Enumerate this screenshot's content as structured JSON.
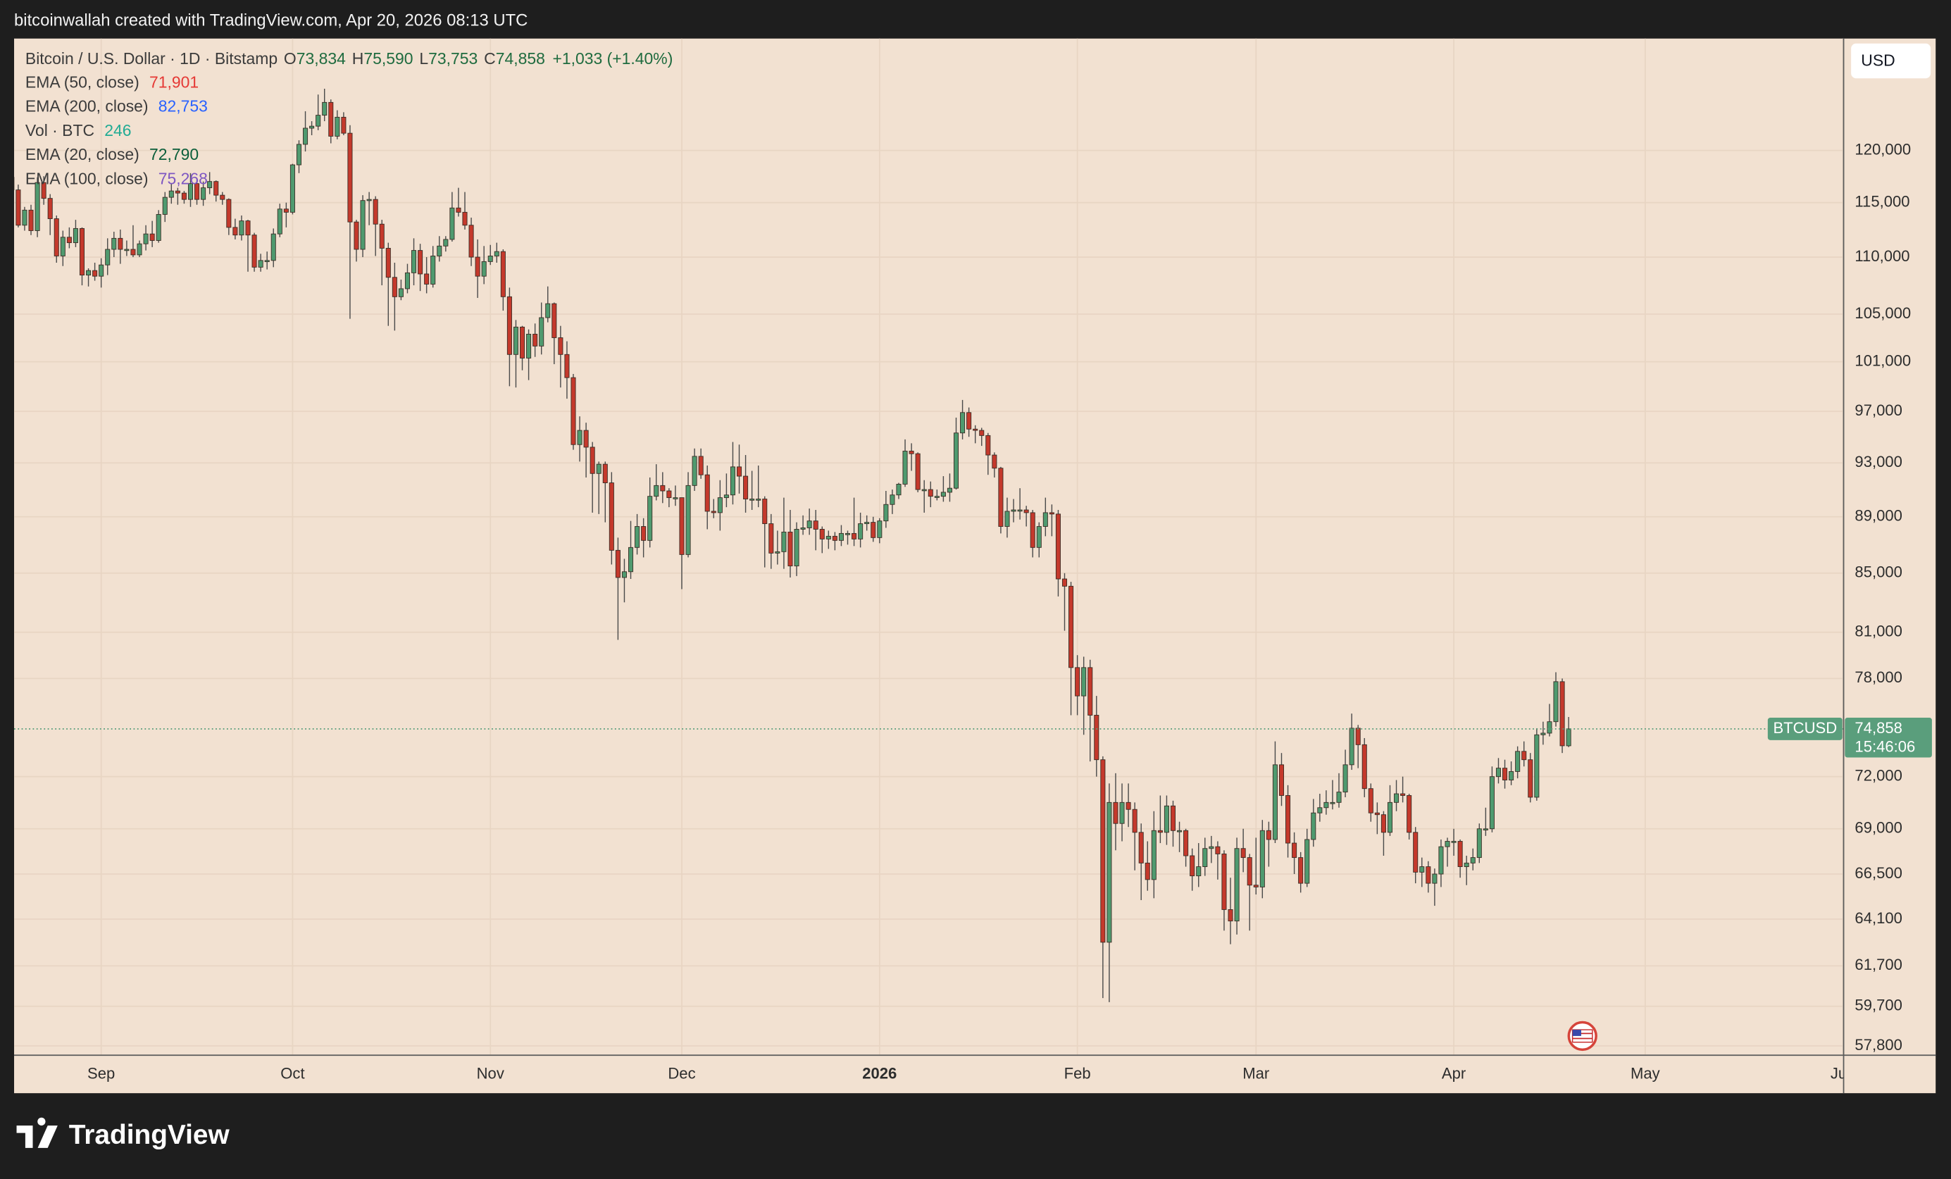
{
  "header": {
    "text": "bitcoinwallah created with TradingView.com, Apr 20, 2026 08:13 UTC"
  },
  "chart_data": {
    "type": "candlestick",
    "symbol": "Bitcoin / U.S. Dollar · 1D · Bitstamp",
    "legend_ohlc": [
      {
        "key": "O",
        "value": "73,834"
      },
      {
        "key": "H",
        "value": "75,590"
      },
      {
        "key": "L",
        "value": "73,753"
      },
      {
        "key": "C",
        "value": "74,858"
      }
    ],
    "change": "+1,033 (+1.40%)",
    "legend_color": "#1f6b3f",
    "indicators": [
      {
        "name": "EMA (50, close)",
        "value": "71,901",
        "color": "#e53935"
      },
      {
        "name": "EMA (200, close)",
        "value": "82,753",
        "color": "#2962ff"
      },
      {
        "name": "Vol · BTC",
        "value": "246",
        "color": "#22ab94"
      },
      {
        "name": "EMA (20, close)",
        "value": "72,790",
        "color": "#0b5e3a"
      },
      {
        "name": "EMA (100, close)",
        "value": "75,268",
        "color": "#7e57c2"
      }
    ],
    "up_color": "#4f9a6f",
    "down_color": "#c4392c",
    "open": [
      117400,
      116200,
      112900,
      114300,
      112400,
      116900,
      115400,
      113500,
      110100,
      111800,
      111300,
      112600,
      108400,
      108800,
      108300,
      109300,
      110700,
      111700,
      110700,
      110700,
      110200,
      111200,
      112100,
      111500,
      113900,
      115500,
      116100,
      115900,
      115300,
      116800,
      115300,
      116400,
      117000,
      115700,
      115300,
      112700,
      112000,
      113300,
      112000,
      109100,
      109700,
      109700,
      112100,
      114400,
      114100,
      118600,
      120600,
      122200,
      122400,
      123500,
      124800,
      121400,
      123300,
      121700,
      113200,
      110700,
      115200,
      115300,
      113000,
      110800,
      108200,
      106500,
      107200,
      108600,
      110600,
      108500,
      107600,
      110100,
      111000,
      111600,
      114500,
      114100,
      112900,
      110000,
      108300,
      109600,
      110100,
      110500,
      106500,
      101600,
      103900,
      101300,
      103300,
      102300,
      104700,
      105900,
      103000,
      101600,
      99700,
      94400,
      95500,
      94200,
      92200,
      92900,
      91500,
      86600,
      84700,
      85100,
      86800,
      88300,
      87300,
      90500,
      91300,
      90900,
      90400,
      90400,
      86300,
      91300,
      93500,
      92100,
      89400,
      89300,
      90400,
      90600,
      92700,
      92000,
      90300,
      90300,
      90300,
      88500,
      86400,
      86500,
      87900,
      85500,
      88100,
      88200,
      88700,
      88100,
      87400,
      87600,
      87300,
      87800,
      87800,
      87400,
      88500,
      88600,
      87500,
      88700,
      89900,
      90600,
      91400,
      93900,
      93700,
      91000,
      91000,
      90500,
      90500,
      90800,
      91100,
      95300,
      96900,
      95600,
      95500,
      95100,
      93600,
      92600,
      88300,
      89400,
      89500,
      89500,
      89300,
      86800,
      88300,
      89300,
      89200,
      84600,
      84100,
      78700,
      76900,
      78700,
      75700,
      73000,
      62900,
      70500,
      69300,
      70500,
      70100,
      68800,
      67100,
      66200,
      68900,
      68800,
      70300,
      68900,
      68900,
      67500,
      66400,
      66900,
      67900,
      68000,
      67600,
      64600,
      64000,
      67900,
      67400,
      65900,
      65800,
      68900,
      68400,
      72700,
      70900,
      68200,
      67400,
      66000,
      68400,
      69900,
      70200,
      70500,
      70500,
      71100,
      72700,
      74900,
      73900,
      71300,
      69900,
      69800,
      68800,
      70500,
      71000,
      70900,
      68800,
      66600,
      66900,
      66000,
      66500,
      68000,
      68300,
      68300,
      66900,
      67100,
      67400,
      69000,
      69000,
      72000,
      72500,
      71800,
      72300,
      73500,
      73000,
      70800,
      74500,
      74600,
      75300,
      77800,
      73834
    ],
    "high": [
      118000,
      116700,
      114600,
      114800,
      117400,
      117500,
      115800,
      113800,
      112400,
      112700,
      113400,
      112700,
      109000,
      109500,
      109900,
      111700,
      112300,
      112500,
      111500,
      112900,
      111500,
      112900,
      113300,
      114300,
      116000,
      116800,
      116400,
      116100,
      117800,
      117200,
      117000,
      117900,
      117100,
      116000,
      115400,
      113500,
      113800,
      113400,
      112200,
      110300,
      110500,
      112600,
      114900,
      115000,
      118700,
      121000,
      123900,
      122900,
      125600,
      126200,
      125100,
      124000,
      123800,
      122500,
      113400,
      115700,
      116000,
      115600,
      113400,
      111300,
      109500,
      108000,
      109400,
      111700,
      111200,
      110000,
      111000,
      111900,
      111900,
      116000,
      116400,
      116000,
      113600,
      111600,
      111000,
      111100,
      111300,
      110700,
      107300,
      104500,
      104000,
      103700,
      104200,
      106000,
      107400,
      106000,
      104000,
      102700,
      100000,
      96600,
      96100,
      94600,
      93100,
      93100,
      92300,
      87500,
      86000,
      88700,
      89200,
      88900,
      91900,
      92900,
      92300,
      91100,
      91300,
      90400,
      92300,
      94100,
      94100,
      92800,
      90300,
      91700,
      92200,
      94600,
      94400,
      93600,
      92400,
      92800,
      90500,
      89200,
      88000,
      90400,
      89500,
      88600,
      89100,
      89600,
      89500,
      88300,
      88000,
      87900,
      88400,
      88000,
      90400,
      89300,
      89100,
      89000,
      88900,
      90900,
      91000,
      91500,
      94800,
      94500,
      93800,
      91700,
      91600,
      91000,
      92000,
      92200,
      96500,
      97900,
      97300,
      95900,
      95700,
      95300,
      93800,
      92700,
      90400,
      90300,
      91100,
      89800,
      89500,
      88600,
      90400,
      89900,
      89500,
      85000,
      84400,
      79500,
      79400,
      79200,
      76900,
      73200,
      71600,
      72200,
      71600,
      71600,
      70500,
      69300,
      68300,
      70000,
      70900,
      70900,
      70600,
      69400,
      69000,
      67900,
      68200,
      68500,
      68600,
      68300,
      67800,
      66300,
      68500,
      69000,
      67600,
      68500,
      69500,
      69400,
      74100,
      73400,
      71500,
      68800,
      67700,
      69000,
      70700,
      71000,
      71200,
      71800,
      72200,
      73600,
      75800,
      75100,
      74300,
      71600,
      70500,
      70000,
      71500,
      71800,
      72000,
      71000,
      69100,
      67400,
      67200,
      66800,
      68400,
      68500,
      69000,
      68400,
      67500,
      67900,
      69300,
      70200,
      72600,
      73100,
      73000,
      72900,
      73800,
      74100,
      73400,
      74900,
      75300,
      76400,
      78400,
      78000,
      75590
    ],
    "low": [
      115700,
      112700,
      112400,
      112000,
      111800,
      114800,
      112000,
      109500,
      109200,
      110800,
      110900,
      107500,
      107400,
      107900,
      107300,
      108400,
      110000,
      109400,
      110100,
      110000,
      110000,
      110600,
      110900,
      111300,
      113200,
      114900,
      114800,
      114900,
      114600,
      114800,
      114700,
      115800,
      115100,
      114800,
      112000,
      111600,
      111500,
      108700,
      108700,
      108700,
      108900,
      109100,
      111800,
      112700,
      113900,
      117800,
      119900,
      121500,
      122000,
      122900,
      120700,
      121100,
      121500,
      104600,
      109600,
      110000,
      112900,
      110100,
      107500,
      104000,
      103600,
      106200,
      106800,
      107500,
      107000,
      106800,
      107300,
      109600,
      110500,
      111400,
      113700,
      112500,
      109200,
      106400,
      107600,
      109300,
      109500,
      105300,
      99000,
      98900,
      100300,
      99500,
      101400,
      101600,
      104300,
      100800,
      98900,
      98000,
      94000,
      93100,
      91900,
      89300,
      89200,
      88600,
      85600,
      80500,
      83000,
      84600,
      86300,
      86100,
      86800,
      90200,
      90000,
      89700,
      89800,
      83900,
      86100,
      90900,
      91800,
      88100,
      88900,
      88000,
      89700,
      89900,
      90700,
      89300,
      89500,
      89700,
      85400,
      85300,
      85600,
      85300,
      84700,
      84800,
      87700,
      87700,
      86600,
      86400,
      86700,
      86600,
      86900,
      87000,
      86900,
      86800,
      88000,
      87200,
      87100,
      88200,
      89200,
      90300,
      91200,
      92400,
      90800,
      89300,
      89700,
      90200,
      90100,
      90100,
      91000,
      94800,
      95000,
      94500,
      94300,
      92100,
      91900,
      87800,
      87500,
      88600,
      88800,
      88300,
      86100,
      86100,
      87600,
      87600,
      83400,
      81100,
      75700,
      75700,
      74500,
      72900,
      72000,
      60100,
      59900,
      67800,
      68300,
      69100,
      66700,
      65100,
      65600,
      65200,
      68200,
      68100,
      68000,
      67700,
      66900,
      65600,
      65800,
      66400,
      67100,
      66200,
      63500,
      62800,
      63300,
      66600,
      63500,
      65400,
      65200,
      66900,
      68200,
      70300,
      67400,
      66500,
      65500,
      65800,
      68000,
      69400,
      69800,
      70100,
      70200,
      70800,
      72400,
      72500,
      70800,
      69400,
      68700,
      67500,
      68600,
      70000,
      70500,
      68400,
      66000,
      65800,
      65500,
      64800,
      65800,
      66900,
      67500,
      66300,
      65900,
      66700,
      67100,
      68600,
      68800,
      71600,
      71300,
      71500,
      71900,
      72600,
      70500,
      70600,
      73900,
      74400,
      75000,
      73400,
      73753
    ],
    "close": [
      116200,
      112900,
      114300,
      112400,
      116900,
      115400,
      113500,
      110100,
      111800,
      111300,
      112600,
      108400,
      108800,
      108300,
      109300,
      110700,
      111700,
      110700,
      110700,
      110200,
      111200,
      112100,
      111500,
      113900,
      115500,
      116100,
      115900,
      115300,
      116800,
      115300,
      116400,
      117000,
      115700,
      115300,
      112700,
      112000,
      113300,
      112000,
      109100,
      109700,
      109700,
      112100,
      114400,
      114100,
      118600,
      120600,
      122200,
      122400,
      123500,
      124800,
      121400,
      123300,
      121700,
      113200,
      110700,
      115200,
      115300,
      113000,
      110800,
      108200,
      106500,
      107200,
      108600,
      110600,
      108500,
      107600,
      110100,
      111000,
      111600,
      114500,
      114100,
      112900,
      110000,
      108300,
      109600,
      110100,
      110500,
      106500,
      101600,
      103900,
      101300,
      103300,
      102300,
      104700,
      105900,
      103000,
      101600,
      99700,
      94400,
      95500,
      94200,
      92200,
      92900,
      91500,
      86600,
      84700,
      85100,
      86800,
      88300,
      87300,
      90500,
      91300,
      90900,
      90400,
      90400,
      86300,
      91300,
      93500,
      92100,
      89400,
      89300,
      90400,
      90600,
      92700,
      92000,
      90300,
      90300,
      90300,
      88500,
      86400,
      86500,
      87900,
      85500,
      88100,
      88200,
      88700,
      88100,
      87400,
      87600,
      87300,
      87800,
      87800,
      87400,
      88500,
      88600,
      87500,
      88700,
      89900,
      90600,
      91400,
      93900,
      93700,
      91000,
      91000,
      90500,
      90500,
      90800,
      91100,
      95300,
      96900,
      95600,
      95500,
      95100,
      93600,
      92600,
      88300,
      89400,
      89500,
      89500,
      89300,
      86800,
      88300,
      89300,
      89200,
      84600,
      84100,
      78700,
      76900,
      78700,
      75700,
      73000,
      62900,
      70500,
      69300,
      70500,
      70100,
      68800,
      67100,
      66200,
      68900,
      68800,
      70300,
      68900,
      68900,
      67500,
      66400,
      66900,
      67900,
      68000,
      67600,
      64600,
      64000,
      67900,
      67400,
      65900,
      65800,
      68900,
      68400,
      72700,
      70900,
      68200,
      67400,
      66000,
      68400,
      69900,
      70200,
      70500,
      70500,
      71100,
      72700,
      74900,
      73900,
      71300,
      69900,
      69800,
      68800,
      70500,
      71000,
      70900,
      68800,
      66600,
      66900,
      66000,
      66500,
      68000,
      68300,
      68300,
      66900,
      67100,
      67400,
      69000,
      69000,
      72000,
      72500,
      71800,
      72300,
      73500,
      73000,
      70800,
      74500,
      74600,
      75300,
      77800,
      73834,
      74858
    ],
    "xlim": [
      0.35,
      287.1
    ],
    "xticks": [
      {
        "value": 14,
        "label": "Sep"
      },
      {
        "value": 44,
        "label": "Oct"
      },
      {
        "value": 75,
        "label": "Nov"
      },
      {
        "value": 105,
        "label": "Dec"
      },
      {
        "value": 136,
        "label": "2026"
      },
      {
        "value": 167,
        "label": "Feb"
      },
      {
        "value": 195,
        "label": "Mar"
      },
      {
        "value": 226,
        "label": "Apr"
      },
      {
        "value": 256,
        "label": "May"
      },
      {
        "value": 287,
        "label": "Jun"
      }
    ],
    "ylim": [
      57390,
      131470
    ],
    "log": true,
    "grid": true,
    "yticks": [
      {
        "value": 120000,
        "label": "120,000"
      },
      {
        "value": 115000,
        "label": "115,000"
      },
      {
        "value": 110000,
        "label": "110,000"
      },
      {
        "value": 105000,
        "label": "105,000"
      },
      {
        "value": 101000,
        "label": "101,000"
      },
      {
        "value": 97000,
        "label": "97,000"
      },
      {
        "value": 93000,
        "label": "93,000"
      },
      {
        "value": 89000,
        "label": "89,000"
      },
      {
        "value": 85000,
        "label": "85,000"
      },
      {
        "value": 81000,
        "label": "81,000"
      },
      {
        "value": 78000,
        "label": "78,000"
      },
      {
        "value": 72000,
        "label": "72,000"
      },
      {
        "value": 69000,
        "label": "69,000"
      },
      {
        "value": 66500,
        "label": "66,500"
      },
      {
        "value": 64100,
        "label": "64,100"
      },
      {
        "value": 61700,
        "label": "61,700"
      },
      {
        "value": 59700,
        "label": "59,700"
      },
      {
        "value": 57800,
        "label": "57,800"
      }
    ],
    "currency": "USD",
    "last_price": {
      "symbol": "BTCUSD",
      "value": 74858,
      "label": "74,858",
      "countdown": "15:46:06",
      "color": "#5a9e7c"
    }
  },
  "footer": {
    "brand": "TradingView"
  }
}
